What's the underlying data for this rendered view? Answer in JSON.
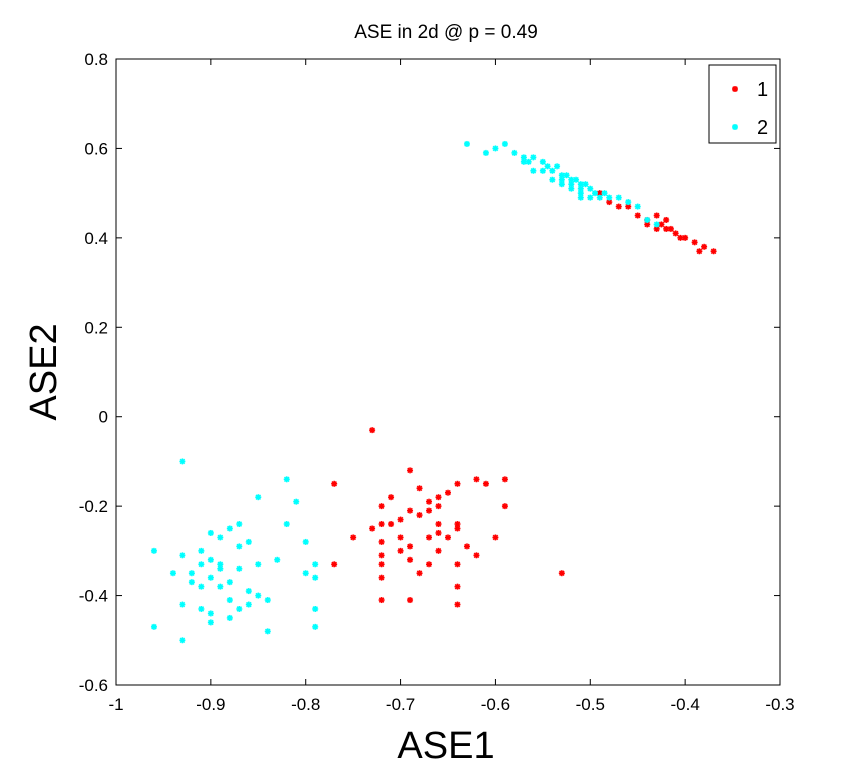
{
  "chart_data": {
    "type": "scatter",
    "title": "ASE in 2d @ p = 0.49",
    "xlabel": "ASE1",
    "ylabel": "ASE2",
    "xlim": [
      -1,
      -0.3
    ],
    "ylim": [
      -0.6,
      0.8
    ],
    "xticks": [
      -1,
      -0.9,
      -0.8,
      -0.7,
      -0.6,
      -0.5,
      -0.4,
      -0.3
    ],
    "yticks": [
      -0.6,
      -0.4,
      -0.2,
      0,
      0.2,
      0.4,
      0.6,
      0.8
    ],
    "xtick_labels": [
      "-1",
      "-0.9",
      "-0.8",
      "-0.7",
      "-0.6",
      "-0.5",
      "-0.4",
      "-0.3"
    ],
    "ytick_labels": [
      "-0.6",
      "-0.4",
      "-0.2",
      "0",
      "0.2",
      "0.4",
      "0.6",
      "0.8"
    ],
    "grid": false,
    "legend_position": "top-right",
    "series": [
      {
        "name": "1",
        "color": "#ff0000",
        "marker": "asterisk",
        "points": [
          [
            -0.73,
            -0.03
          ],
          [
            -0.69,
            -0.12
          ],
          [
            -0.77,
            -0.15
          ],
          [
            -0.68,
            -0.16
          ],
          [
            -0.66,
            -0.18
          ],
          [
            -0.71,
            -0.18
          ],
          [
            -0.67,
            -0.19
          ],
          [
            -0.65,
            -0.17
          ],
          [
            -0.64,
            -0.15
          ],
          [
            -0.62,
            -0.14
          ],
          [
            -0.61,
            -0.15
          ],
          [
            -0.59,
            -0.14
          ],
          [
            -0.72,
            -0.2
          ],
          [
            -0.69,
            -0.21
          ],
          [
            -0.67,
            -0.21
          ],
          [
            -0.68,
            -0.22
          ],
          [
            -0.66,
            -0.2
          ],
          [
            -0.59,
            -0.2
          ],
          [
            -0.7,
            -0.23
          ],
          [
            -0.71,
            -0.24
          ],
          [
            -0.72,
            -0.24
          ],
          [
            -0.73,
            -0.25
          ],
          [
            -0.66,
            -0.24
          ],
          [
            -0.64,
            -0.24
          ],
          [
            -0.64,
            -0.25
          ],
          [
            -0.75,
            -0.27
          ],
          [
            -0.7,
            -0.27
          ],
          [
            -0.66,
            -0.26
          ],
          [
            -0.67,
            -0.27
          ],
          [
            -0.65,
            -0.27
          ],
          [
            -0.6,
            -0.27
          ],
          [
            -0.72,
            -0.28
          ],
          [
            -0.69,
            -0.29
          ],
          [
            -0.63,
            -0.29
          ],
          [
            -0.66,
            -0.3
          ],
          [
            -0.7,
            -0.3
          ],
          [
            -0.62,
            -0.31
          ],
          [
            -0.72,
            -0.31
          ],
          [
            -0.69,
            -0.32
          ],
          [
            -0.77,
            -0.33
          ],
          [
            -0.72,
            -0.33
          ],
          [
            -0.67,
            -0.33
          ],
          [
            -0.64,
            -0.33
          ],
          [
            -0.72,
            -0.36
          ],
          [
            -0.68,
            -0.35
          ],
          [
            -0.53,
            -0.35
          ],
          [
            -0.64,
            -0.38
          ],
          [
            -0.72,
            -0.41
          ],
          [
            -0.69,
            -0.41
          ],
          [
            -0.64,
            -0.42
          ],
          [
            -0.49,
            0.5
          ],
          [
            -0.48,
            0.48
          ],
          [
            -0.47,
            0.47
          ],
          [
            -0.46,
            0.47
          ],
          [
            -0.45,
            0.45
          ],
          [
            -0.44,
            0.44
          ],
          [
            -0.43,
            0.45
          ],
          [
            -0.42,
            0.44
          ],
          [
            -0.425,
            0.43
          ],
          [
            -0.42,
            0.42
          ],
          [
            -0.41,
            0.41
          ],
          [
            -0.405,
            0.4
          ],
          [
            -0.4,
            0.4
          ],
          [
            -0.39,
            0.39
          ],
          [
            -0.38,
            0.38
          ],
          [
            -0.37,
            0.37
          ],
          [
            -0.385,
            0.37
          ],
          [
            -0.43,
            0.42
          ],
          [
            -0.415,
            0.42
          ],
          [
            -0.44,
            0.43
          ]
        ]
      },
      {
        "name": "2",
        "color": "#00ffff",
        "marker": "asterisk",
        "points": [
          [
            -0.93,
            -0.1
          ],
          [
            -0.82,
            -0.14
          ],
          [
            -0.85,
            -0.18
          ],
          [
            -0.81,
            -0.19
          ],
          [
            -0.82,
            -0.24
          ],
          [
            -0.88,
            -0.25
          ],
          [
            -0.87,
            -0.24
          ],
          [
            -0.9,
            -0.26
          ],
          [
            -0.86,
            -0.28
          ],
          [
            -0.89,
            -0.27
          ],
          [
            -0.8,
            -0.28
          ],
          [
            -0.87,
            -0.29
          ],
          [
            -0.91,
            -0.3
          ],
          [
            -0.96,
            -0.3
          ],
          [
            -0.93,
            -0.31
          ],
          [
            -0.9,
            -0.32
          ],
          [
            -0.89,
            -0.33
          ],
          [
            -0.91,
            -0.33
          ],
          [
            -0.83,
            -0.32
          ],
          [
            -0.79,
            -0.33
          ],
          [
            -0.94,
            -0.35
          ],
          [
            -0.92,
            -0.35
          ],
          [
            -0.89,
            -0.34
          ],
          [
            -0.87,
            -0.34
          ],
          [
            -0.85,
            -0.33
          ],
          [
            -0.8,
            -0.35
          ],
          [
            -0.79,
            -0.36
          ],
          [
            -0.9,
            -0.36
          ],
          [
            -0.88,
            -0.37
          ],
          [
            -0.91,
            -0.38
          ],
          [
            -0.92,
            -0.37
          ],
          [
            -0.89,
            -0.38
          ],
          [
            -0.86,
            -0.39
          ],
          [
            -0.85,
            -0.4
          ],
          [
            -0.88,
            -0.41
          ],
          [
            -0.86,
            -0.42
          ],
          [
            -0.84,
            -0.41
          ],
          [
            -0.93,
            -0.42
          ],
          [
            -0.91,
            -0.43
          ],
          [
            -0.9,
            -0.44
          ],
          [
            -0.87,
            -0.43
          ],
          [
            -0.79,
            -0.43
          ],
          [
            -0.88,
            -0.45
          ],
          [
            -0.9,
            -0.46
          ],
          [
            -0.96,
            -0.47
          ],
          [
            -0.84,
            -0.48
          ],
          [
            -0.79,
            -0.47
          ],
          [
            -0.93,
            -0.5
          ],
          [
            -0.63,
            0.61
          ],
          [
            -0.61,
            0.59
          ],
          [
            -0.6,
            0.6
          ],
          [
            -0.59,
            0.61
          ],
          [
            -0.58,
            0.59
          ],
          [
            -0.57,
            0.58
          ],
          [
            -0.565,
            0.57
          ],
          [
            -0.56,
            0.58
          ],
          [
            -0.55,
            0.57
          ],
          [
            -0.545,
            0.56
          ],
          [
            -0.54,
            0.55
          ],
          [
            -0.535,
            0.56
          ],
          [
            -0.53,
            0.54
          ],
          [
            -0.525,
            0.54
          ],
          [
            -0.52,
            0.53
          ],
          [
            -0.515,
            0.53
          ],
          [
            -0.51,
            0.52
          ],
          [
            -0.505,
            0.52
          ],
          [
            -0.5,
            0.51
          ],
          [
            -0.495,
            0.5
          ],
          [
            -0.49,
            0.49
          ],
          [
            -0.485,
            0.5
          ],
          [
            -0.48,
            0.49
          ],
          [
            -0.47,
            0.49
          ],
          [
            -0.46,
            0.48
          ],
          [
            -0.45,
            0.47
          ],
          [
            -0.44,
            0.44
          ],
          [
            -0.43,
            0.43
          ],
          [
            -0.54,
            0.53
          ],
          [
            -0.52,
            0.52
          ],
          [
            -0.51,
            0.5
          ],
          [
            -0.5,
            0.49
          ],
          [
            -0.55,
            0.55
          ],
          [
            -0.56,
            0.55
          ],
          [
            -0.53,
            0.52
          ],
          [
            -0.51,
            0.51
          ],
          [
            -0.57,
            0.57
          ],
          [
            -0.53,
            0.53
          ],
          [
            -0.52,
            0.51
          ],
          [
            -0.51,
            0.49
          ]
        ]
      }
    ]
  }
}
